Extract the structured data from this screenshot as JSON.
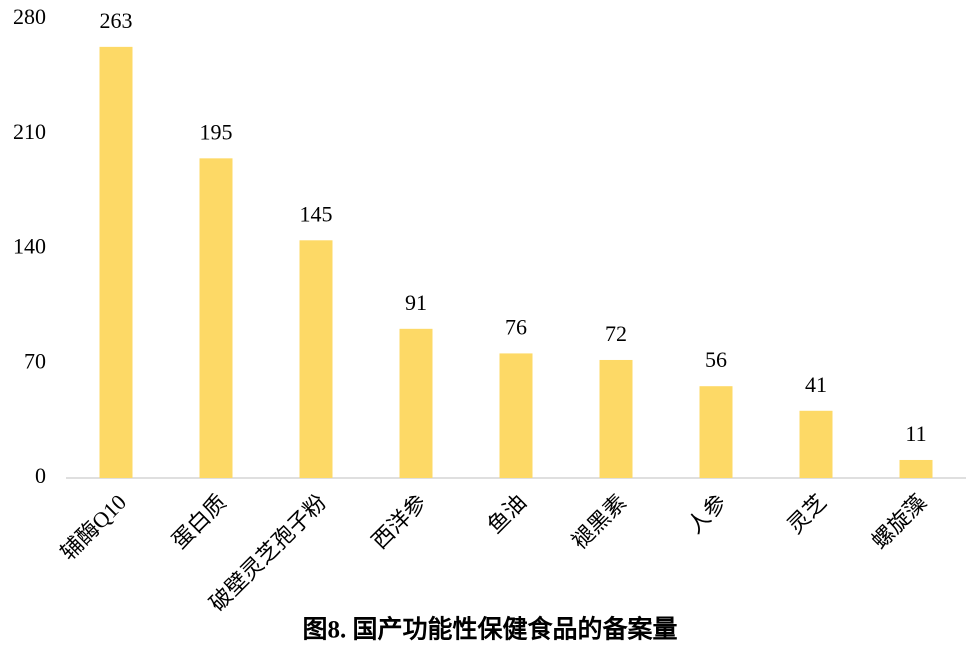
{
  "chart_data": {
    "type": "bar",
    "title": "图8. 国产功能性保健食品的备案量",
    "categories": [
      "辅酶Q10",
      "蛋白质",
      "破壁灵芝孢子粉",
      "西洋参",
      "鱼油",
      "褪黑素",
      "人参",
      "灵芝",
      "螺旋藻"
    ],
    "values": [
      263,
      195,
      145,
      91,
      76,
      72,
      56,
      41,
      11
    ],
    "color": "#fdd966",
    "ylim": [
      0,
      280
    ],
    "yticks": [
      0,
      70,
      140,
      210,
      280
    ],
    "grid": false
  }
}
